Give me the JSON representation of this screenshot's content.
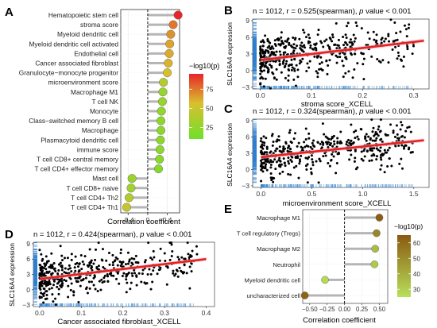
{
  "colors": {
    "panel_a_low": "#6ee02a",
    "panel_a_mid": "#d9c02e",
    "panel_a_high": "#e8262a",
    "panel_e_low": "#b8e05a",
    "panel_e_high": "#8a5a10",
    "stem": "#b5b5b5",
    "fit_line": "#e6201f",
    "fit_band": "#f4b6c4",
    "rug": "#2a7fd1",
    "points": "#000000"
  },
  "chart_data": [
    {
      "panel": "A",
      "type": "lollipop",
      "xlabel": "Correlation coefficient",
      "xticks": [
        "-0.4",
        "0",
        "0.4"
      ],
      "xlim": [
        -0.55,
        0.65
      ],
      "legend_title": "−log10(p)",
      "legend_ticks": [
        "75",
        "50",
        "25"
      ],
      "legend_range": [
        10,
        95
      ],
      "categories": [
        "Hematopoietic stem cell",
        "stroma score",
        "Myeloid dendritic cell",
        "Myeloid dendritic cell activated",
        "Endothelial cell",
        "Cancer associated fibroblast",
        "Granulocyte−monocyte progenitor",
        "microenvironment score",
        "Macrophage M1",
        "T cell NK",
        "Monocyte",
        "Class−switched memory B cell",
        "Macrophage",
        "Plasmacytoid dendritic cell",
        "immune score",
        "T cell CD8+ central memory",
        "T cell CD4+ effector memory",
        "Mast cell",
        "T cell CD8+ naive",
        "T cell CD4+ Th2",
        "T cell CD4+ Th1"
      ],
      "values": [
        0.62,
        0.52,
        0.47,
        0.45,
        0.44,
        0.42,
        0.4,
        0.32,
        0.31,
        0.3,
        0.28,
        0.27,
        0.27,
        0.26,
        0.25,
        0.24,
        0.22,
        -0.32,
        -0.34,
        -0.38,
        -0.43
      ],
      "log10p": [
        95,
        75,
        68,
        64,
        62,
        60,
        55,
        40,
        28,
        28,
        25,
        24,
        24,
        23,
        23,
        22,
        20,
        30,
        32,
        40,
        48
      ]
    },
    {
      "panel": "B",
      "type": "scatter",
      "title": "n = 1012, r = 0.525(spearman), p value < 0.001",
      "title_parts": [
        "n = 1012, r = 0.525(spearman), ",
        "p",
        " value < 0.001"
      ],
      "xlabel": "stroma score_XCELL",
      "ylabel": "SLC16A4 expression",
      "xlim": [
        -0.015,
        0.33
      ],
      "ylim": [
        -3.3,
        9.3
      ],
      "xticks": [
        "0.0",
        "0.1",
        "0.2",
        "0.3"
      ],
      "yticks": [
        "9",
        "6",
        "3",
        "0",
        "−3"
      ],
      "fit": {
        "x": [
          0,
          0.32
        ],
        "y": [
          1.9,
          5.4
        ]
      },
      "n": 1012
    },
    {
      "panel": "C",
      "type": "scatter",
      "title": "n = 1012, r = 0.324(spearman), p value < 0.001",
      "title_parts": [
        "n = 1012, r = 0.324(spearman), ",
        "p",
        " value < 0.001"
      ],
      "xlabel": "microenvironment score_XCELL",
      "ylabel": "SLC16A4 expression",
      "xlim": [
        -0.08,
        1.65
      ],
      "ylim": [
        -3.3,
        9.3
      ],
      "xticks": [
        "0.0",
        "0.5",
        "1.0",
        "1.5"
      ],
      "yticks": [
        "9",
        "6",
        "3",
        "0",
        "−3"
      ],
      "fit": {
        "x": [
          0,
          1.6
        ],
        "y": [
          2.3,
          5.4
        ]
      },
      "n": 1012
    },
    {
      "panel": "D",
      "type": "scatter",
      "title": "n = 1012, r = 0.424(spearman), p value < 0.001",
      "title_parts": [
        "n = 1012, r = 0.424(spearman), ",
        "p",
        " value < 0.001"
      ],
      "xlabel": "Cancer associated fibroblast_XCELL",
      "ylabel": "SLC16A4 expression",
      "xlim": [
        -0.015,
        0.42
      ],
      "ylim": [
        -3.3,
        9.3
      ],
      "xticks": [
        "0.0",
        "0.1",
        "0.2",
        "0.3",
        "0.4"
      ],
      "yticks": [
        "9",
        "6",
        "3",
        "0",
        "−3"
      ],
      "fit": {
        "x": [
          0,
          0.4
        ],
        "y": [
          2.1,
          6.0
        ]
      },
      "n": 1012
    },
    {
      "panel": "E",
      "type": "lollipop",
      "xlabel": "Correlation coefficient",
      "xticks": [
        "−0.50",
        "−0.25",
        "0.00",
        "0.25",
        "0.50"
      ],
      "xlim": [
        -0.6,
        0.62
      ],
      "legend_title": "−log10(p)",
      "legend_ticks": [
        "60",
        "50",
        "40",
        "30"
      ],
      "legend_range": [
        25,
        65
      ],
      "categories": [
        "Macrophage M1",
        "T cell regulatory (Tregs)",
        "Macrophage M2",
        "Neutrophil",
        "Myeloid dendritic cell",
        "uncharacterized cell"
      ],
      "values": [
        0.5,
        0.46,
        0.44,
        0.43,
        -0.28,
        -0.57
      ],
      "log10p": [
        64,
        52,
        36,
        32,
        27,
        62
      ]
    }
  ],
  "panel_labels": [
    "A",
    "B",
    "C",
    "D",
    "E"
  ]
}
